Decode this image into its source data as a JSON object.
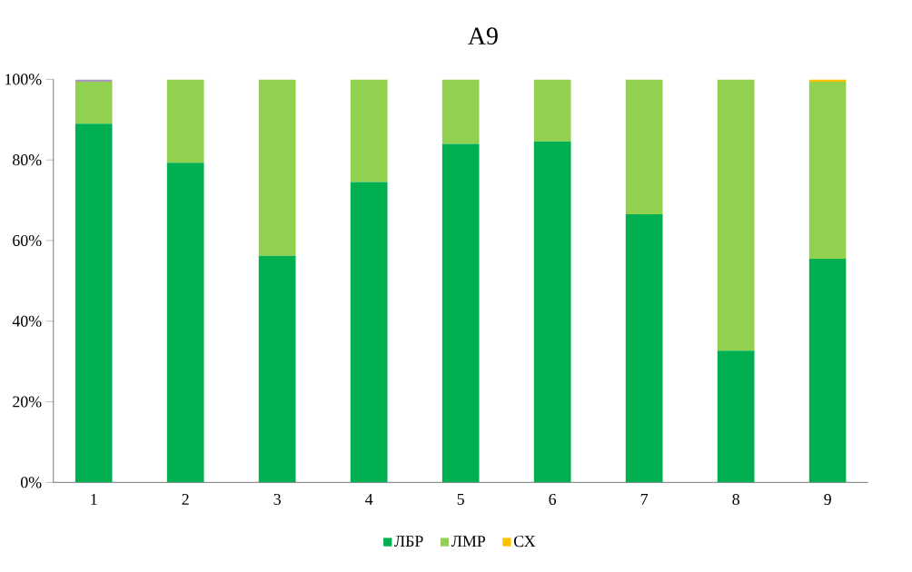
{
  "chart_data": {
    "type": "bar",
    "title": "A9",
    "stacked": true,
    "legend": "bottom",
    "grid": false,
    "categories": [
      "1",
      "2",
      "3",
      "4",
      "5",
      "6",
      "7",
      "8",
      "9"
    ],
    "series": [
      {
        "name": "ЛБР",
        "color": "#00b050",
        "values": [
          89,
          79.3,
          56.2,
          74.5,
          84,
          84.6,
          66.5,
          32.7,
          55.5
        ]
      },
      {
        "name": "ЛМР",
        "color": "#92d050",
        "values": [
          10.4,
          20.7,
          43.8,
          25.5,
          16,
          15.4,
          33.5,
          67.3,
          43.9
        ]
      },
      {
        "name": "СХ",
        "color": "#ffc000",
        "values": [
          0,
          0,
          0,
          0,
          0,
          0,
          0,
          0,
          0.6
        ]
      },
      {
        "color": "#a99bc0",
        "values": [
          0.6,
          0,
          0,
          0,
          0,
          0,
          0,
          0,
          0
        ]
      }
    ],
    "ylim": [
      0,
      100
    ],
    "yticks": [
      {
        "value": 0,
        "label": "0%"
      },
      {
        "value": 20,
        "label": "20%"
      },
      {
        "value": 40,
        "label": "40%"
      },
      {
        "value": 60,
        "label": "60%"
      },
      {
        "value": 80,
        "label": "80%"
      },
      {
        "value": 100,
        "label": "100%"
      }
    ]
  }
}
